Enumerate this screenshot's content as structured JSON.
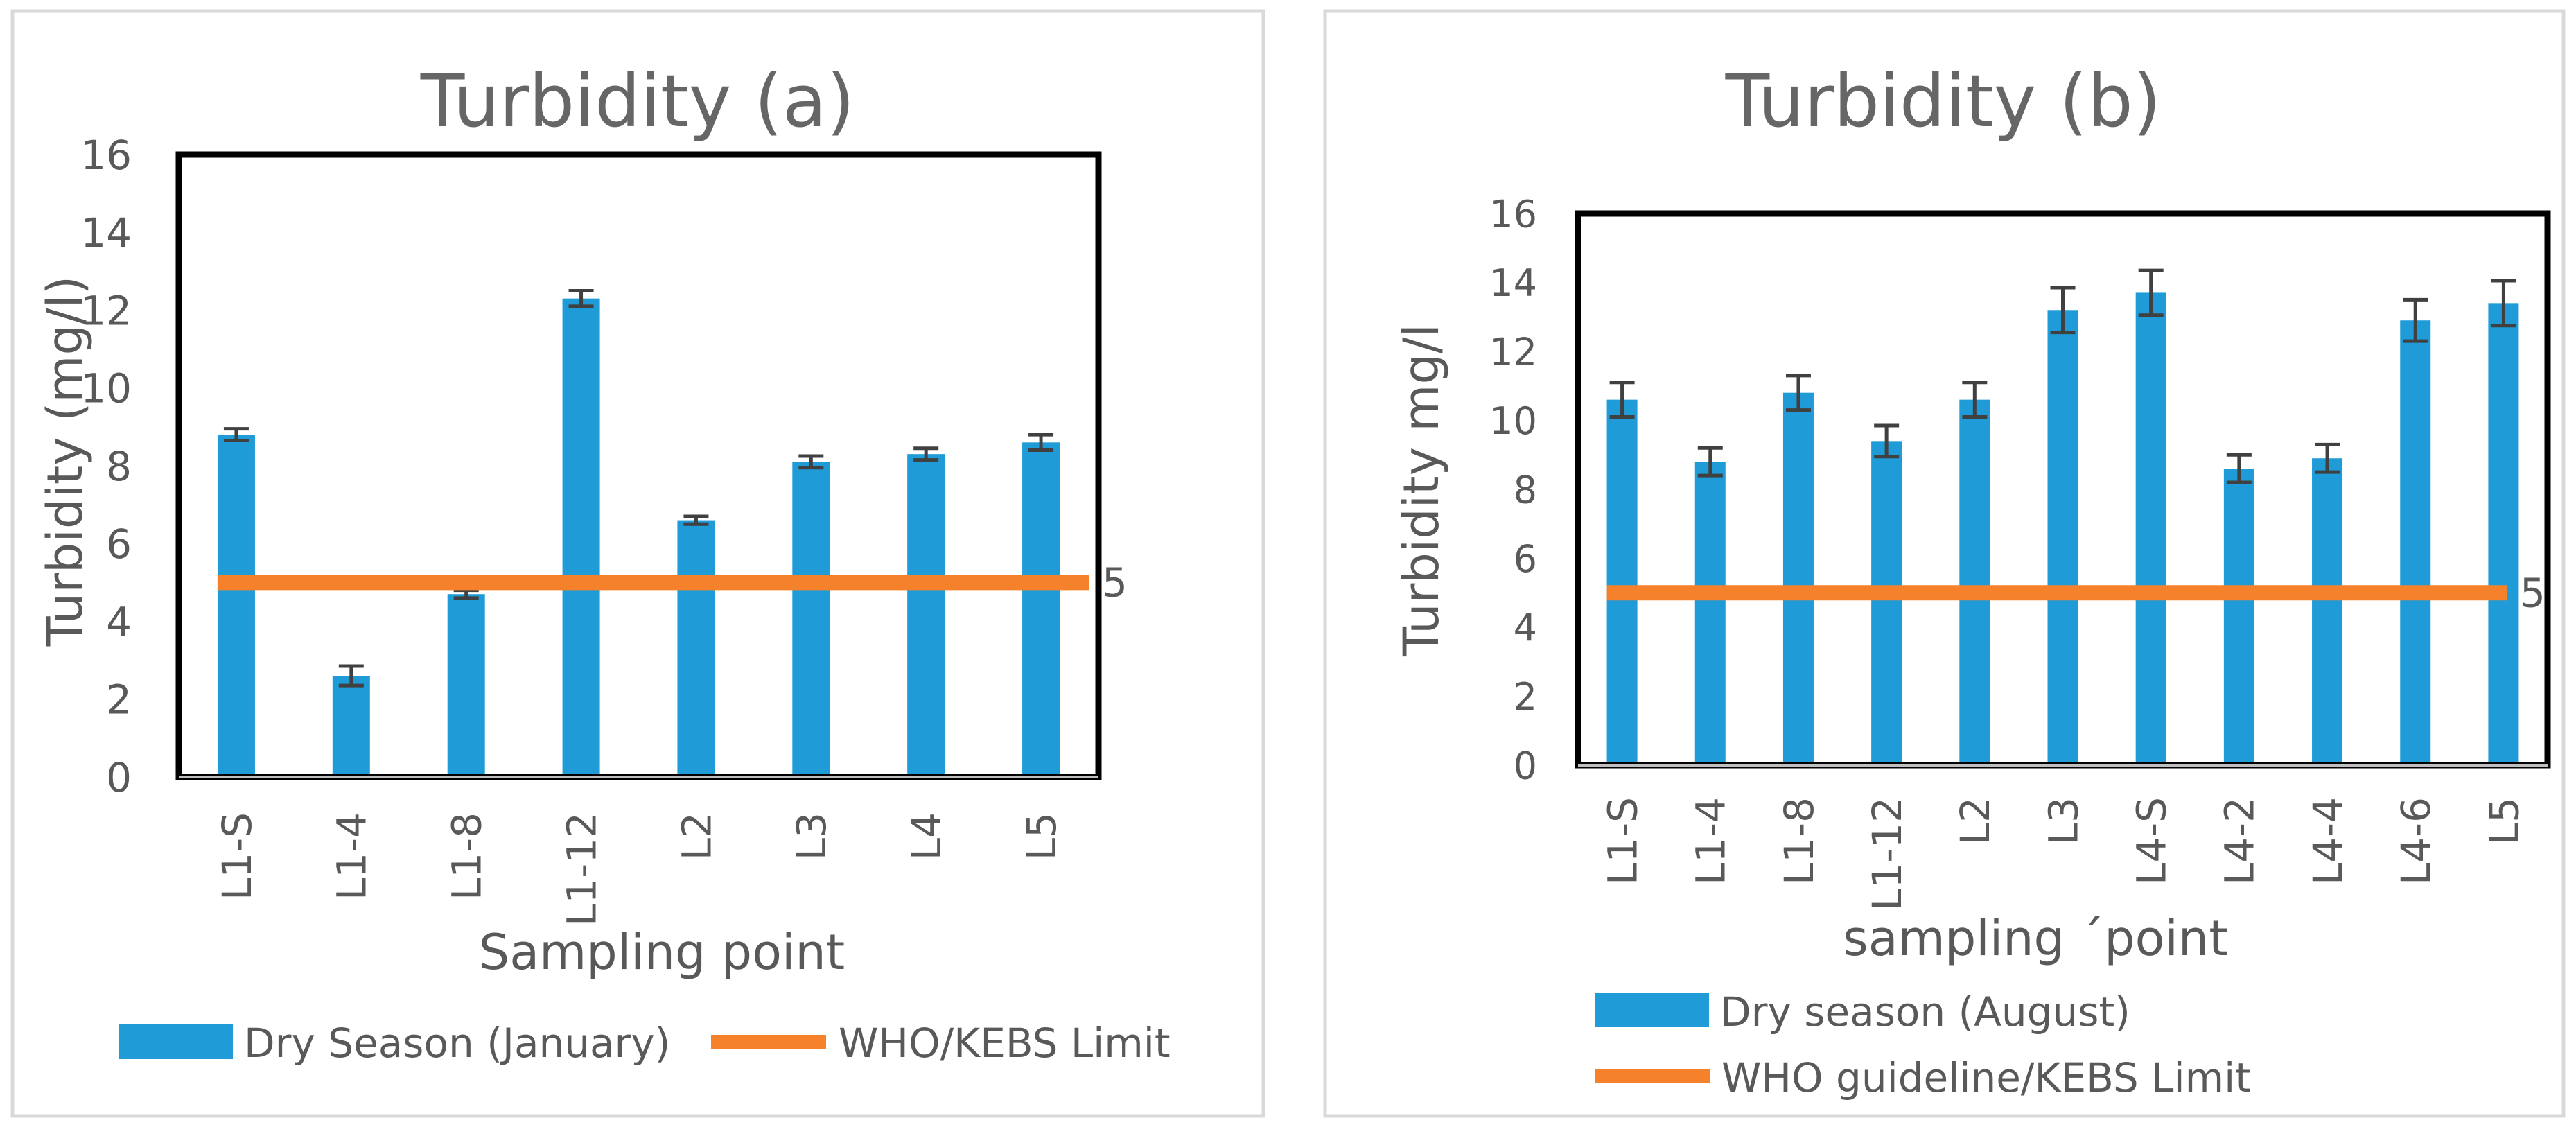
{
  "chart_data": [
    {
      "type": "bar",
      "title": "Turbidity (a)",
      "xlabel": "Sampling point",
      "ylabel": "Turbidity (mg/l)",
      "ylim": [
        0,
        16
      ],
      "yticks": [
        "0",
        "2",
        "4",
        "6",
        "8",
        "10",
        "12",
        "14",
        "16"
      ],
      "categories": [
        "L1-S",
        "L1-4",
        "L1-8",
        "L1-12",
        "L2",
        "L3",
        "L4",
        "L5"
      ],
      "series": [
        {
          "name": "Dry Season (January)",
          "values": [
            8.8,
            2.6,
            4.7,
            12.3,
            6.6,
            8.1,
            8.3,
            8.6
          ],
          "errors": [
            0.15,
            0.25,
            0.1,
            0.2,
            0.1,
            0.15,
            0.15,
            0.2
          ],
          "color": "#1f9bd7"
        }
      ],
      "reference_line": {
        "name": "WHO/KEBS Limit",
        "value": 5,
        "label": "5",
        "color": "#f5822a"
      },
      "legend_position": "bottom"
    },
    {
      "type": "bar",
      "title": "Turbidity (b)",
      "xlabel": "sampling ´point",
      "ylabel": "Turbidity mg/l",
      "ylim": [
        0,
        16
      ],
      "yticks": [
        "0",
        "2",
        "4",
        "6",
        "8",
        "10",
        "12",
        "14",
        "16"
      ],
      "categories": [
        "L1-S",
        "L1-4",
        "L1-8",
        "L1-12",
        "L2",
        "L3",
        "L4-S",
        "L4-2",
        "L4-4",
        "L4-6",
        "L5"
      ],
      "series": [
        {
          "name": "Dry season (August)",
          "values": [
            10.6,
            8.8,
            10.8,
            9.4,
            10.6,
            13.2,
            13.7,
            8.6,
            8.9,
            12.9,
            13.4
          ],
          "errors": [
            0.5,
            0.4,
            0.5,
            0.45,
            0.5,
            0.65,
            0.65,
            0.4,
            0.4,
            0.6,
            0.65
          ],
          "color": "#1f9bd7"
        }
      ],
      "reference_line": {
        "name": "WHO guideline/KEBS Limit",
        "value": 5,
        "label": "5",
        "color": "#f5822a"
      },
      "legend_position": "bottom"
    }
  ]
}
